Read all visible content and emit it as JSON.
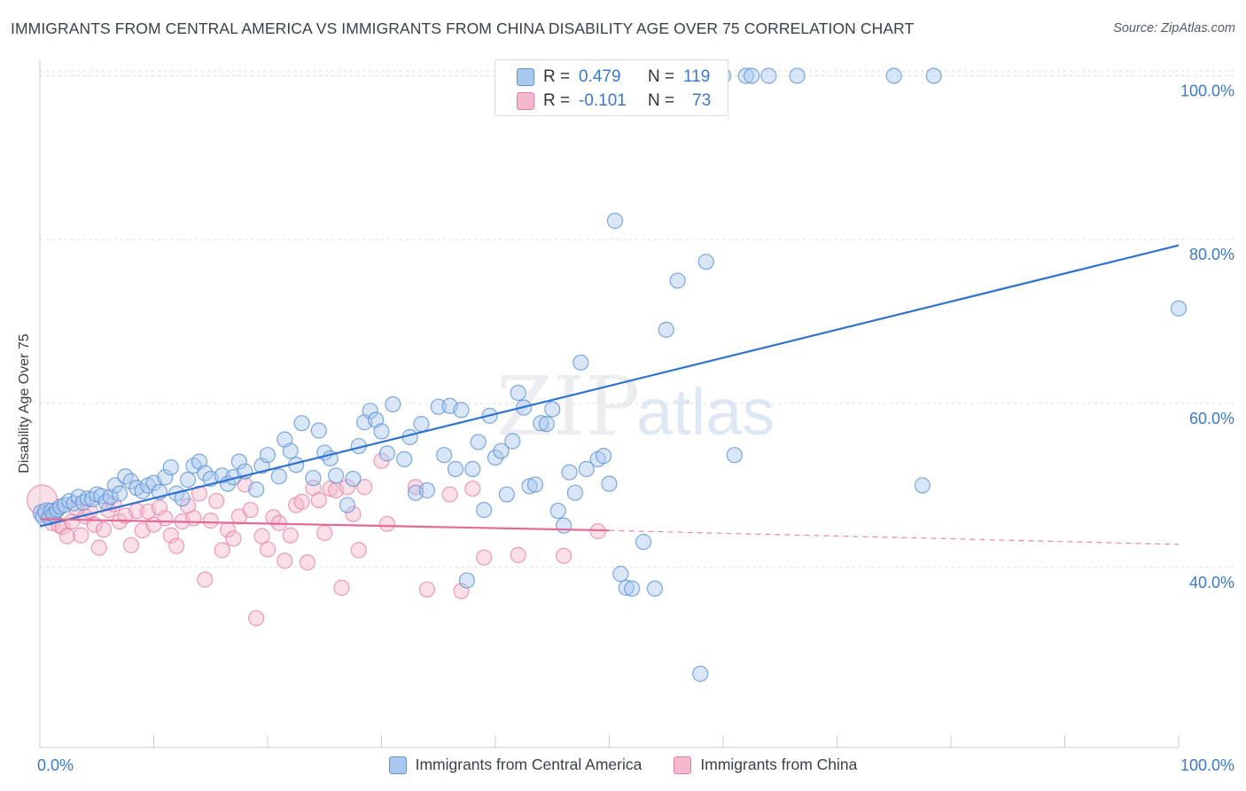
{
  "title": "IMMIGRANTS FROM CENTRAL AMERICA VS IMMIGRANTS FROM CHINA DISABILITY AGE OVER 75 CORRELATION CHART",
  "source": "Source: ZipAtlas.com",
  "watermark": {
    "zip": "ZIP",
    "atlas": "atlas"
  },
  "legend": {
    "series1": "Immigrants from Central America",
    "series2": "Immigrants from China"
  },
  "stats": {
    "r_label": "R =",
    "n_label": "N =",
    "series1": {
      "r": "0.479",
      "n": "119"
    },
    "series2": {
      "r": "-0.101",
      "n": "73"
    }
  },
  "colors": {
    "blue_fill": "#a9c8ef",
    "blue_stroke": "#5f93d6",
    "blue_line": "#2f72cf",
    "pink_fill": "#f5b7cb",
    "pink_stroke": "#e87ea1",
    "pink_line": "#e46a94",
    "axis_label": "#3a78d0",
    "grid": "#d9dde3"
  },
  "chart_data": {
    "type": "scatter",
    "title": "IMMIGRANTS FROM CENTRAL AMERICA VS IMMIGRANTS FROM CHINA DISABILITY AGE OVER 75 CORRELATION CHART",
    "xlabel": "",
    "ylabel": "Disability Age Over 75",
    "xlim": [
      0,
      100
    ],
    "ylim": [
      18,
      102
    ],
    "x_tick_labels": [
      "0.0%",
      "100.0%"
    ],
    "y_ticks": [
      40,
      60,
      80,
      100
    ],
    "y_tick_labels": [
      "40.0%",
      "60.0%",
      "80.0%",
      "100.0%"
    ],
    "series": [
      {
        "name": "Immigrants from Central America",
        "r": 0.479,
        "n": 119,
        "trend": {
          "x": [
            0,
            100
          ],
          "y": [
            45.0,
            79.3
          ],
          "style": "solid"
        },
        "points": [
          [
            0.2,
            46.6
          ],
          [
            0.4,
            46.2
          ],
          [
            0.6,
            46.8
          ],
          [
            0.8,
            46.1
          ],
          [
            1.0,
            46.9
          ],
          [
            1.2,
            46.4
          ],
          [
            1.5,
            47.0
          ],
          [
            1.8,
            47.4
          ],
          [
            2.2,
            47.6
          ],
          [
            2.6,
            48.1
          ],
          [
            3.0,
            47.8
          ],
          [
            3.4,
            48.6
          ],
          [
            3.8,
            47.9
          ],
          [
            4.2,
            48.4
          ],
          [
            4.6,
            48.3
          ],
          [
            5.0,
            48.9
          ],
          [
            5.4,
            48.7
          ],
          [
            5.8,
            48.0
          ],
          [
            6.2,
            48.6
          ],
          [
            6.6,
            50.0
          ],
          [
            7.0,
            49.0
          ],
          [
            7.5,
            51.1
          ],
          [
            8.0,
            50.5
          ],
          [
            8.5,
            49.7
          ],
          [
            9.0,
            49.3
          ],
          [
            9.5,
            50.0
          ],
          [
            10.0,
            50.3
          ],
          [
            10.5,
            49.2
          ],
          [
            11.0,
            51.0
          ],
          [
            11.5,
            52.2
          ],
          [
            12.0,
            49.0
          ],
          [
            12.5,
            48.4
          ],
          [
            13.0,
            50.7
          ],
          [
            13.5,
            52.4
          ],
          [
            14.0,
            52.9
          ],
          [
            14.5,
            51.5
          ],
          [
            15.0,
            50.8
          ],
          [
            16.0,
            51.2
          ],
          [
            16.5,
            50.2
          ],
          [
            17.0,
            51.0
          ],
          [
            17.5,
            52.9
          ],
          [
            18.0,
            51.7
          ],
          [
            19.0,
            49.5
          ],
          [
            19.5,
            52.4
          ],
          [
            20.0,
            53.7
          ],
          [
            21.0,
            51.1
          ],
          [
            21.5,
            55.6
          ],
          [
            22.0,
            54.2
          ],
          [
            22.5,
            52.5
          ],
          [
            23.0,
            57.6
          ],
          [
            24.0,
            50.9
          ],
          [
            24.5,
            56.7
          ],
          [
            25.0,
            54.0
          ],
          [
            25.5,
            53.3
          ],
          [
            26.0,
            51.2
          ],
          [
            27.0,
            47.6
          ],
          [
            27.5,
            50.8
          ],
          [
            28.0,
            54.8
          ],
          [
            28.5,
            57.7
          ],
          [
            29.0,
            59.1
          ],
          [
            29.5,
            58.0
          ],
          [
            30.0,
            56.6
          ],
          [
            30.5,
            53.9
          ],
          [
            31.0,
            59.9
          ],
          [
            32.0,
            53.2
          ],
          [
            32.5,
            55.9
          ],
          [
            33.0,
            49.1
          ],
          [
            33.5,
            57.5
          ],
          [
            34.0,
            49.4
          ],
          [
            35.0,
            59.6
          ],
          [
            35.5,
            53.7
          ],
          [
            36.0,
            59.7
          ],
          [
            36.5,
            52.0
          ],
          [
            37.0,
            59.2
          ],
          [
            37.5,
            38.4
          ],
          [
            38.0,
            52.0
          ],
          [
            38.5,
            55.3
          ],
          [
            39.0,
            47.0
          ],
          [
            39.5,
            58.5
          ],
          [
            40.0,
            53.4
          ],
          [
            40.5,
            54.2
          ],
          [
            41.0,
            48.9
          ],
          [
            41.5,
            55.4
          ],
          [
            42.0,
            61.3
          ],
          [
            42.5,
            59.5
          ],
          [
            43.0,
            49.9
          ],
          [
            43.5,
            50.1
          ],
          [
            44.0,
            57.6
          ],
          [
            44.5,
            57.5
          ],
          [
            45.0,
            59.3
          ],
          [
            45.5,
            46.9
          ],
          [
            46.0,
            45.1
          ],
          [
            46.5,
            51.6
          ],
          [
            47.0,
            49.1
          ],
          [
            47.5,
            65.0
          ],
          [
            48.0,
            52.0
          ],
          [
            49.0,
            53.2
          ],
          [
            49.5,
            53.6
          ],
          [
            50.0,
            50.2
          ],
          [
            50.5,
            82.3
          ],
          [
            51.0,
            39.2
          ],
          [
            51.5,
            37.5
          ],
          [
            52.0,
            37.4
          ],
          [
            53.0,
            43.1
          ],
          [
            54.0,
            37.4
          ],
          [
            55.0,
            69.0
          ],
          [
            56.0,
            75.0
          ],
          [
            58.0,
            27.0
          ],
          [
            58.5,
            77.3
          ],
          [
            60.0,
            100.0
          ],
          [
            61.0,
            53.7
          ],
          [
            62.0,
            100.0
          ],
          [
            62.5,
            100.0
          ],
          [
            64.0,
            100.0
          ],
          [
            66.5,
            100.0
          ],
          [
            75.0,
            100.0
          ],
          [
            77.5,
            50.0
          ],
          [
            78.5,
            100.0
          ],
          [
            100.0,
            71.6
          ]
        ]
      },
      {
        "name": "Immigrants from China",
        "r": -0.101,
        "n": 73,
        "trend": {
          "x": [
            0,
            50,
            100
          ],
          "y": [
            45.9,
            44.5,
            42.8
          ],
          "style": "solid-then-dashed",
          "solid_until": 50
        },
        "points": [
          [
            0.2,
            48.2
          ],
          [
            0.5,
            46.6
          ],
          [
            0.8,
            46.1
          ],
          [
            1.1,
            45.4
          ],
          [
            1.4,
            46.8
          ],
          [
            1.7,
            45.1
          ],
          [
            2.0,
            44.9
          ],
          [
            2.4,
            43.8
          ],
          [
            2.8,
            45.6
          ],
          [
            3.2,
            47.2
          ],
          [
            3.6,
            43.9
          ],
          [
            4.0,
            46.2
          ],
          [
            4.4,
            46.9
          ],
          [
            4.8,
            45.2
          ],
          [
            5.2,
            42.4
          ],
          [
            5.6,
            44.6
          ],
          [
            6.0,
            47.0
          ],
          [
            6.5,
            47.7
          ],
          [
            7.0,
            45.6
          ],
          [
            7.5,
            46.3
          ],
          [
            8.0,
            42.7
          ],
          [
            8.5,
            46.9
          ],
          [
            9.0,
            44.5
          ],
          [
            9.5,
            46.8
          ],
          [
            10.0,
            45.2
          ],
          [
            10.5,
            47.3
          ],
          [
            11.0,
            46.0
          ],
          [
            11.5,
            43.9
          ],
          [
            12.0,
            42.6
          ],
          [
            12.5,
            45.6
          ],
          [
            13.0,
            47.5
          ],
          [
            13.5,
            46.0
          ],
          [
            14.0,
            49.0
          ],
          [
            14.5,
            38.5
          ],
          [
            15.0,
            45.7
          ],
          [
            15.5,
            48.1
          ],
          [
            16.0,
            42.1
          ],
          [
            16.5,
            44.6
          ],
          [
            17.0,
            43.5
          ],
          [
            17.5,
            46.2
          ],
          [
            18.0,
            50.1
          ],
          [
            18.5,
            47.0
          ],
          [
            19.0,
            33.8
          ],
          [
            19.5,
            43.8
          ],
          [
            20.0,
            42.2
          ],
          [
            20.5,
            46.1
          ],
          [
            21.0,
            45.4
          ],
          [
            21.5,
            40.8
          ],
          [
            22.0,
            43.9
          ],
          [
            22.5,
            47.6
          ],
          [
            23.0,
            48.0
          ],
          [
            23.5,
            40.6
          ],
          [
            24.0,
            49.7
          ],
          [
            24.5,
            48.2
          ],
          [
            25.0,
            44.2
          ],
          [
            25.5,
            49.6
          ],
          [
            26.0,
            49.4
          ],
          [
            26.5,
            37.5
          ],
          [
            27.0,
            49.8
          ],
          [
            27.5,
            46.5
          ],
          [
            28.0,
            42.1
          ],
          [
            28.5,
            49.8
          ],
          [
            30.0,
            53.0
          ],
          [
            30.5,
            45.3
          ],
          [
            33.0,
            49.8
          ],
          [
            34.0,
            37.3
          ],
          [
            36.0,
            48.9
          ],
          [
            37.0,
            37.1
          ],
          [
            38.0,
            49.6
          ],
          [
            39.0,
            41.2
          ],
          [
            42.0,
            41.5
          ],
          [
            46.0,
            41.4
          ],
          [
            49.0,
            44.4
          ]
        ]
      }
    ]
  }
}
